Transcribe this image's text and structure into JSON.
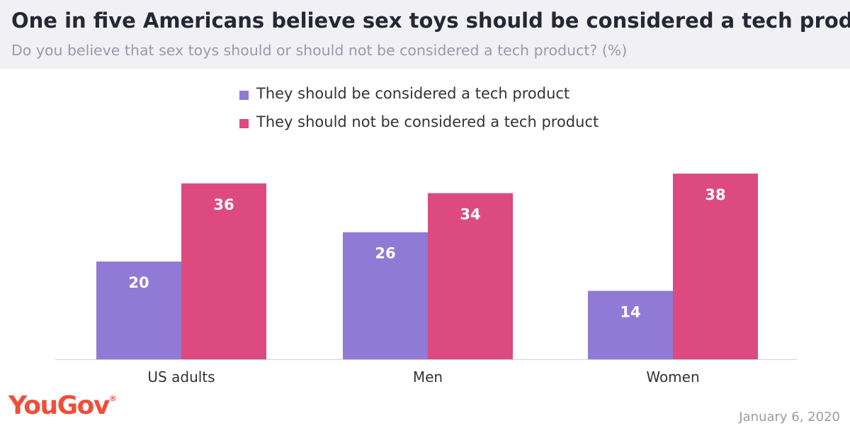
{
  "header": {
    "title": "One in five Americans believe sex toys should be considered a tech product",
    "subtitle": "Do you believe that sex toys should or should not be considered a tech product? (%)"
  },
  "chart_data": {
    "type": "bar",
    "categories": [
      "US adults",
      "Men",
      "Women"
    ],
    "series": [
      {
        "name": "They should be considered a tech product",
        "values": [
          20,
          26,
          14
        ],
        "color": "#9179d6"
      },
      {
        "name": "They should not be considered a tech product",
        "values": [
          36,
          34,
          38
        ],
        "color": "#dd4a80"
      }
    ],
    "ylim": [
      0,
      38
    ],
    "grid": false,
    "legend_position": "top-center",
    "data_labels": true
  },
  "footer": {
    "logo": "YouGov",
    "logo_mark": "®",
    "date": "January 6, 2020"
  }
}
